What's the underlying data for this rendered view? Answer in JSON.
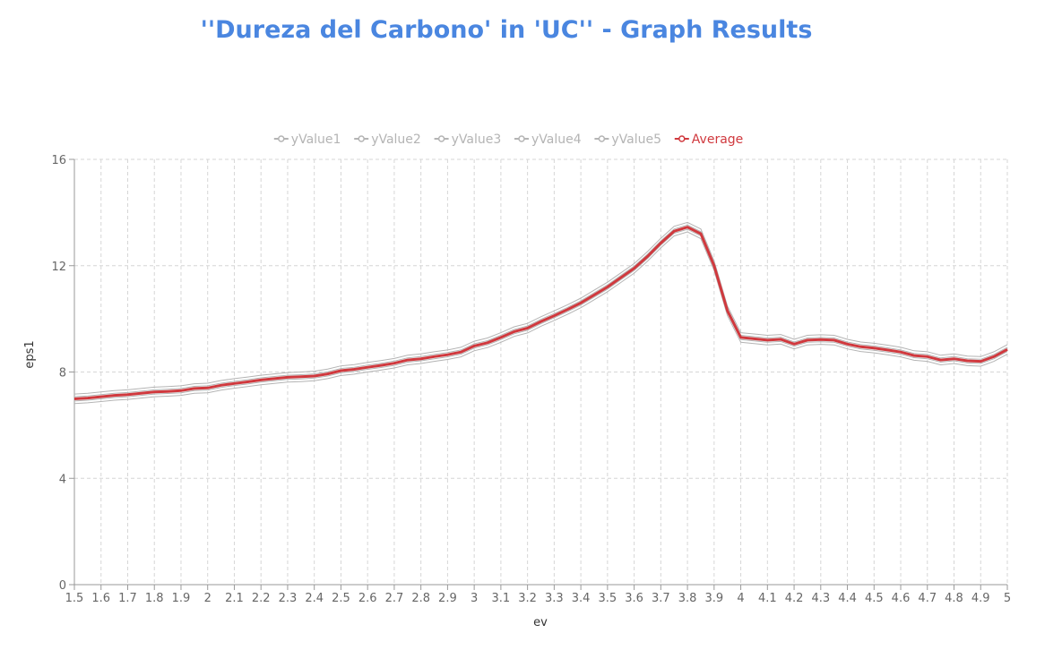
{
  "title": "''Dureza del Carbono' in 'UC'' - Graph Results",
  "colors": {
    "title": "#4a86e0",
    "series": "#b4b4b4",
    "average": "#d0393e",
    "grid": "#d6d6d6",
    "axis": "#999999"
  },
  "chart_data": {
    "type": "line",
    "title": "''Dureza del Carbono' in 'UC'' - Graph Results",
    "xlabel": "ev",
    "ylabel": "eps1",
    "xlim": [
      1.5,
      5
    ],
    "ylim": [
      0,
      16
    ],
    "xticks": [
      "1.5",
      "1.6",
      "1.7",
      "1.8",
      "1.9",
      "2",
      "2.1",
      "2.2",
      "2.3",
      "2.4",
      "2.5",
      "2.6",
      "2.7",
      "2.8",
      "2.9",
      "3",
      "3.1",
      "3.2",
      "3.3",
      "3.4",
      "3.5",
      "3.6",
      "3.7",
      "3.8",
      "3.9",
      "4",
      "4.1",
      "4.2",
      "4.3",
      "4.4",
      "4.5",
      "4.6",
      "4.7",
      "4.8",
      "4.9",
      "5"
    ],
    "yticks": [
      "0",
      "4",
      "8",
      "12",
      "16"
    ],
    "grid": true,
    "legend_position": "top-center",
    "x": [
      1.5,
      1.55,
      1.6,
      1.65,
      1.7,
      1.75,
      1.8,
      1.85,
      1.9,
      1.95,
      2.0,
      2.05,
      2.1,
      2.15,
      2.2,
      2.25,
      2.3,
      2.35,
      2.4,
      2.45,
      2.5,
      2.55,
      2.6,
      2.65,
      2.7,
      2.75,
      2.8,
      2.85,
      2.9,
      2.95,
      3.0,
      3.05,
      3.1,
      3.15,
      3.2,
      3.25,
      3.3,
      3.35,
      3.4,
      3.45,
      3.5,
      3.55,
      3.6,
      3.65,
      3.7,
      3.75,
      3.8,
      3.85,
      3.9,
      3.95,
      4.0,
      4.05,
      4.1,
      4.15,
      4.2,
      4.25,
      4.3,
      4.35,
      4.4,
      4.45,
      4.5,
      4.55,
      4.6,
      4.65,
      4.7,
      4.75,
      4.8,
      4.85,
      4.9,
      4.95,
      5.0
    ],
    "average": [
      6.99,
      7.02,
      7.07,
      7.12,
      7.15,
      7.2,
      7.25,
      7.27,
      7.3,
      7.38,
      7.4,
      7.5,
      7.57,
      7.63,
      7.7,
      7.75,
      7.8,
      7.82,
      7.85,
      7.93,
      8.05,
      8.1,
      8.18,
      8.25,
      8.33,
      8.45,
      8.5,
      8.58,
      8.65,
      8.75,
      8.98,
      9.1,
      9.3,
      9.52,
      9.65,
      9.9,
      10.12,
      10.35,
      10.6,
      10.9,
      11.2,
      11.55,
      11.9,
      12.35,
      12.85,
      13.3,
      13.45,
      13.2,
      12.0,
      10.3,
      9.3,
      9.25,
      9.2,
      9.23,
      9.05,
      9.2,
      9.22,
      9.2,
      9.05,
      8.95,
      8.9,
      8.83,
      8.75,
      8.62,
      8.58,
      8.45,
      8.5,
      8.42,
      8.4,
      8.58,
      8.85
    ],
    "series": [
      {
        "name": "yValue1",
        "offset": 0.18,
        "values": [
          7.17,
          7.2,
          7.25,
          7.3,
          7.33,
          7.38,
          7.43,
          7.45,
          7.48,
          7.56,
          7.58,
          7.68,
          7.75,
          7.81,
          7.88,
          7.93,
          7.98,
          8.0,
          8.03,
          8.11,
          8.23,
          8.28,
          8.36,
          8.43,
          8.51,
          8.63,
          8.68,
          8.76,
          8.83,
          8.93,
          9.16,
          9.28,
          9.48,
          9.7,
          9.83,
          10.08,
          10.3,
          10.53,
          10.78,
          11.08,
          11.38,
          11.73,
          12.08,
          12.53,
          13.03,
          13.48,
          13.63,
          13.38,
          12.18,
          10.48,
          9.48,
          9.43,
          9.38,
          9.41,
          9.23,
          9.38,
          9.4,
          9.38,
          9.23,
          9.13,
          9.08,
          9.01,
          8.93,
          8.8,
          8.76,
          8.63,
          8.68,
          8.6,
          8.58,
          8.76,
          9.03
        ]
      },
      {
        "name": "yValue2",
        "offset": 0.08,
        "values": [
          7.07,
          7.1,
          7.15,
          7.2,
          7.23,
          7.28,
          7.33,
          7.35,
          7.38,
          7.46,
          7.48,
          7.58,
          7.65,
          7.71,
          7.78,
          7.83,
          7.88,
          7.9,
          7.93,
          8.01,
          8.13,
          8.18,
          8.26,
          8.33,
          8.41,
          8.53,
          8.58,
          8.66,
          8.73,
          8.83,
          9.06,
          9.18,
          9.38,
          9.6,
          9.73,
          9.98,
          10.2,
          10.43,
          10.68,
          10.98,
          11.28,
          11.63,
          11.98,
          12.43,
          12.93,
          13.38,
          13.53,
          13.28,
          12.08,
          10.38,
          9.38,
          9.33,
          9.28,
          9.31,
          9.13,
          9.28,
          9.3,
          9.28,
          9.13,
          9.03,
          8.98,
          8.91,
          8.83,
          8.7,
          8.66,
          8.53,
          8.58,
          8.5,
          8.48,
          8.66,
          8.93
        ]
      },
      {
        "name": "yValue3",
        "offset": 0.0,
        "values": [
          6.99,
          7.02,
          7.07,
          7.12,
          7.15,
          7.2,
          7.25,
          7.27,
          7.3,
          7.38,
          7.4,
          7.5,
          7.57,
          7.63,
          7.7,
          7.75,
          7.8,
          7.82,
          7.85,
          7.93,
          8.05,
          8.1,
          8.18,
          8.25,
          8.33,
          8.45,
          8.5,
          8.58,
          8.65,
          8.75,
          8.98,
          9.1,
          9.3,
          9.52,
          9.65,
          9.9,
          10.12,
          10.35,
          10.6,
          10.9,
          11.2,
          11.55,
          11.9,
          12.35,
          12.85,
          13.3,
          13.45,
          13.2,
          12.0,
          10.3,
          9.3,
          9.25,
          9.2,
          9.23,
          9.05,
          9.2,
          9.22,
          9.2,
          9.05,
          8.95,
          8.9,
          8.83,
          8.75,
          8.62,
          8.58,
          8.45,
          8.5,
          8.42,
          8.4,
          8.58,
          8.85
        ]
      },
      {
        "name": "yValue4",
        "offset": -0.08,
        "values": [
          6.91,
          6.94,
          6.99,
          7.04,
          7.07,
          7.12,
          7.17,
          7.19,
          7.22,
          7.3,
          7.32,
          7.42,
          7.49,
          7.55,
          7.62,
          7.67,
          7.72,
          7.74,
          7.77,
          7.85,
          7.97,
          8.02,
          8.1,
          8.17,
          8.25,
          8.37,
          8.42,
          8.5,
          8.57,
          8.67,
          8.9,
          9.02,
          9.22,
          9.44,
          9.57,
          9.82,
          10.04,
          10.27,
          10.52,
          10.82,
          11.12,
          11.47,
          11.82,
          12.27,
          12.77,
          13.22,
          13.37,
          13.12,
          11.92,
          10.22,
          9.22,
          9.17,
          9.12,
          9.15,
          8.97,
          9.12,
          9.14,
          9.12,
          8.97,
          8.87,
          8.82,
          8.75,
          8.67,
          8.54,
          8.5,
          8.37,
          8.42,
          8.34,
          8.32,
          8.5,
          8.77
        ]
      },
      {
        "name": "yValue5",
        "offset": -0.18,
        "values": [
          6.81,
          6.84,
          6.89,
          6.94,
          6.97,
          7.02,
          7.07,
          7.09,
          7.12,
          7.2,
          7.22,
          7.32,
          7.39,
          7.45,
          7.52,
          7.57,
          7.62,
          7.64,
          7.67,
          7.75,
          7.87,
          7.92,
          8.0,
          8.07,
          8.15,
          8.27,
          8.32,
          8.4,
          8.47,
          8.57,
          8.8,
          8.92,
          9.12,
          9.34,
          9.47,
          9.72,
          9.94,
          10.17,
          10.42,
          10.72,
          11.02,
          11.37,
          11.72,
          12.17,
          12.67,
          13.12,
          13.27,
          13.02,
          11.82,
          10.12,
          9.12,
          9.07,
          9.02,
          9.05,
          8.87,
          9.02,
          9.04,
          9.02,
          8.87,
          8.77,
          8.72,
          8.65,
          8.57,
          8.44,
          8.4,
          8.27,
          8.32,
          8.24,
          8.22,
          8.4,
          8.67
        ]
      }
    ],
    "legend": [
      "yValue1",
      "yValue2",
      "yValue3",
      "yValue4",
      "yValue5",
      "Average"
    ]
  }
}
